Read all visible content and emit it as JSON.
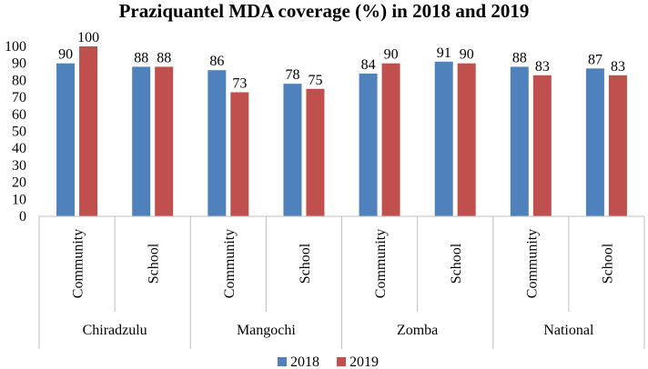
{
  "chart_data": {
    "type": "bar",
    "title": "Praziquantel MDA coverage (%) in 2018 and 2019",
    "xlabel": "",
    "ylabel": "",
    "ylim": [
      0,
      100
    ],
    "yticks": [
      0,
      10,
      20,
      30,
      40,
      50,
      60,
      70,
      80,
      90,
      100
    ],
    "groups": [
      {
        "name": "Chiradzulu",
        "categories": [
          "Community",
          "School"
        ]
      },
      {
        "name": "Mangochi",
        "categories": [
          "Community",
          "School"
        ]
      },
      {
        "name": "Zomba",
        "categories": [
          "Community",
          "School"
        ]
      },
      {
        "name": "National",
        "categories": [
          "Community",
          "School"
        ]
      }
    ],
    "categories": [
      "Community",
      "School",
      "Community",
      "School",
      "Community",
      "School",
      "Community",
      "School"
    ],
    "series": [
      {
        "name": "2018",
        "color": "#4F81BD",
        "values": [
          90,
          88,
          86,
          78,
          84,
          91,
          88,
          87
        ]
      },
      {
        "name": "2019",
        "color": "#C0504D",
        "values": [
          100,
          88,
          73,
          75,
          90,
          90,
          83,
          83
        ]
      }
    ],
    "legend_position": "bottom",
    "grid": false
  }
}
